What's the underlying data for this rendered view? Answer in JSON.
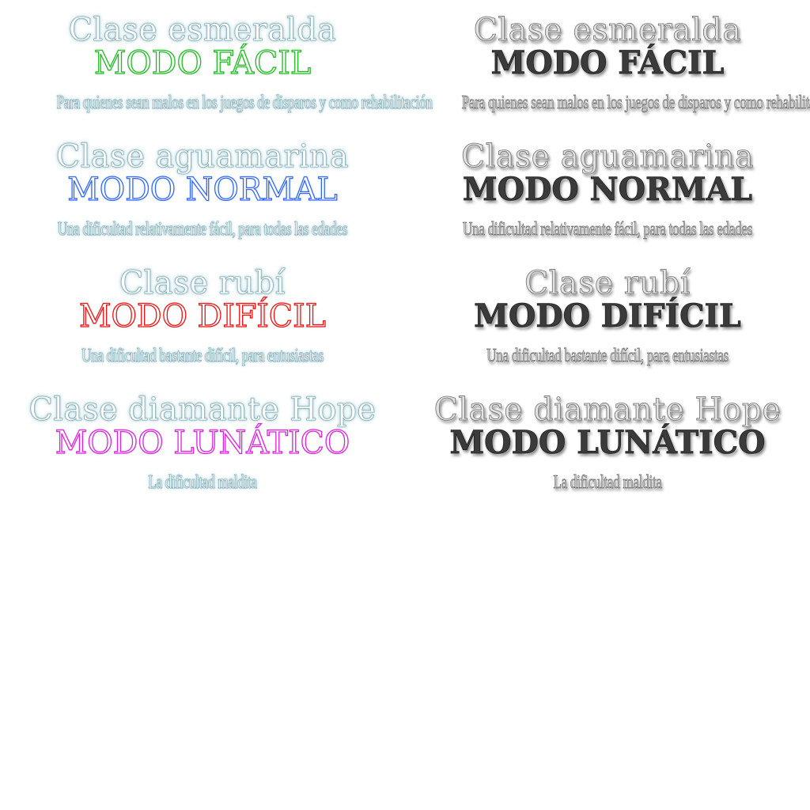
{
  "entries": [
    {
      "class_label": "Clase esmeralda",
      "mode_label": "MODO FÁCIL",
      "description": "Para quienes sean malos en los juegos de disparos y como rehabilitación",
      "mode_color": "#22bb22"
    },
    {
      "class_label": "Clase aguamarina",
      "mode_label": "MODO NORMAL",
      "description": "Una dificultad relativamente fácil, para todas las edades",
      "mode_color": "#3366ff"
    },
    {
      "class_label": "Clase rubí",
      "mode_label": "MODO DIFÍCIL",
      "description": "Una dificultad bastante difícil, para entusiastas",
      "mode_color": "#ee1111"
    },
    {
      "class_label": "Clase diamante Hope",
      "mode_label": "MODO LUNÁTICO",
      "description": "La dificultad maldita",
      "mode_color": "#dd22dd"
    }
  ],
  "styles": {
    "left_variant": "highlighted",
    "right_variant": "greyed"
  }
}
